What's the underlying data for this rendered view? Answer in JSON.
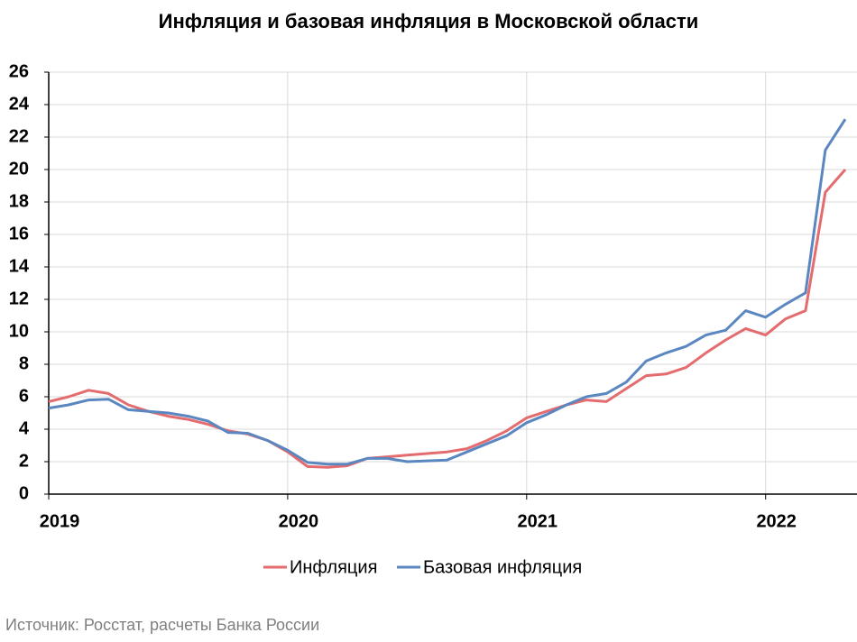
{
  "chart_data": {
    "type": "line",
    "title": "Инфляция и базовая инфляция в Московской области",
    "source": "Источник: Росстат, расчеты Банка России",
    "categories": [
      "2019",
      null,
      null,
      null,
      null,
      null,
      null,
      null,
      null,
      null,
      null,
      null,
      "2020",
      null,
      null,
      null,
      null,
      null,
      null,
      null,
      null,
      null,
      null,
      null,
      "2021",
      null,
      null,
      null,
      null,
      null,
      null,
      null,
      null,
      null,
      null,
      null,
      "2022",
      null,
      null,
      null,
      null
    ],
    "series": [
      {
        "name": "Инфляция",
        "color": "#e46b6e",
        "values": [
          5.7,
          6.0,
          6.4,
          6.2,
          5.5,
          5.1,
          4.8,
          4.6,
          4.3,
          3.9,
          3.7,
          3.3,
          2.6,
          1.7,
          1.65,
          1.75,
          2.2,
          2.3,
          2.4,
          2.5,
          2.6,
          2.8,
          3.3,
          3.9,
          4.7,
          5.1,
          5.5,
          5.8,
          5.7,
          6.5,
          7.3,
          7.4,
          7.8,
          8.7,
          9.5,
          10.2,
          9.8,
          10.8,
          11.3,
          18.6,
          20.0
        ]
      },
      {
        "name": "Базовая инфляция",
        "color": "#5b87c1",
        "values": [
          5.3,
          5.5,
          5.8,
          5.85,
          5.2,
          5.1,
          5.0,
          4.8,
          4.5,
          3.8,
          3.75,
          3.3,
          2.7,
          1.95,
          1.85,
          1.85,
          2.2,
          2.2,
          2.0,
          2.05,
          2.1,
          2.6,
          3.1,
          3.6,
          4.4,
          4.9,
          5.5,
          6.0,
          6.2,
          6.9,
          8.2,
          8.7,
          9.1,
          9.8,
          10.1,
          11.3,
          10.9,
          11.7,
          12.4,
          21.2,
          23.1
        ]
      }
    ],
    "ylim": [
      0,
      26
    ],
    "yticks": [
      0,
      2,
      4,
      6,
      8,
      10,
      12,
      14,
      16,
      18,
      20,
      22,
      24,
      26
    ],
    "grid": true,
    "legend": "bottom"
  }
}
